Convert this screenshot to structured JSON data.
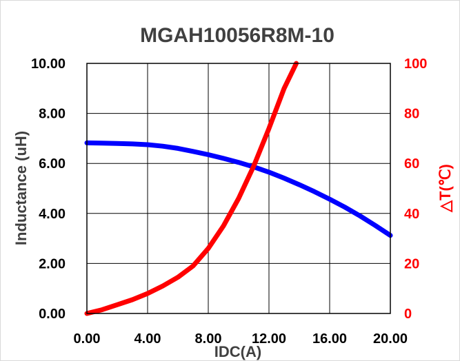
{
  "chart_data": {
    "type": "line",
    "title": "MGAH10056R8M-10",
    "xlabel": "IDC(A)",
    "ylabel": "Inductance  (uH)",
    "y2label": "△T(℃)",
    "xlim": [
      0,
      20
    ],
    "ylim": [
      0,
      10
    ],
    "y2lim": [
      0,
      100
    ],
    "grid": true,
    "x_ticks": [
      "0.00",
      "4.00",
      "8.00",
      "12.00",
      "16.00",
      "20.00"
    ],
    "y_ticks": [
      "0.00",
      "2.00",
      "4.00",
      "6.00",
      "8.00",
      "10.00"
    ],
    "y2_ticks": [
      "0",
      "20",
      "40",
      "60",
      "80",
      "100"
    ],
    "series": [
      {
        "axis": "left",
        "color": "#0000ff",
        "x": [
          0,
          1,
          2,
          3,
          4,
          5,
          6,
          7,
          8,
          9,
          10,
          11,
          12,
          13,
          14,
          15,
          16,
          17,
          18,
          19,
          20
        ],
        "y": [
          6.82,
          6.81,
          6.8,
          6.78,
          6.75,
          6.69,
          6.6,
          6.48,
          6.35,
          6.2,
          6.04,
          5.86,
          5.65,
          5.41,
          5.15,
          4.87,
          4.57,
          4.25,
          3.9,
          3.52,
          3.12
        ]
      },
      {
        "axis": "right",
        "color": "#ff0000",
        "x": [
          0,
          1,
          2,
          3,
          4,
          5,
          6,
          7,
          8,
          9,
          10,
          11,
          12,
          13,
          13.8
        ],
        "y": [
          0,
          1.5,
          3.5,
          5.5,
          8,
          11,
          14.5,
          19,
          26,
          35,
          46,
          59,
          74,
          90,
          100
        ]
      }
    ]
  }
}
